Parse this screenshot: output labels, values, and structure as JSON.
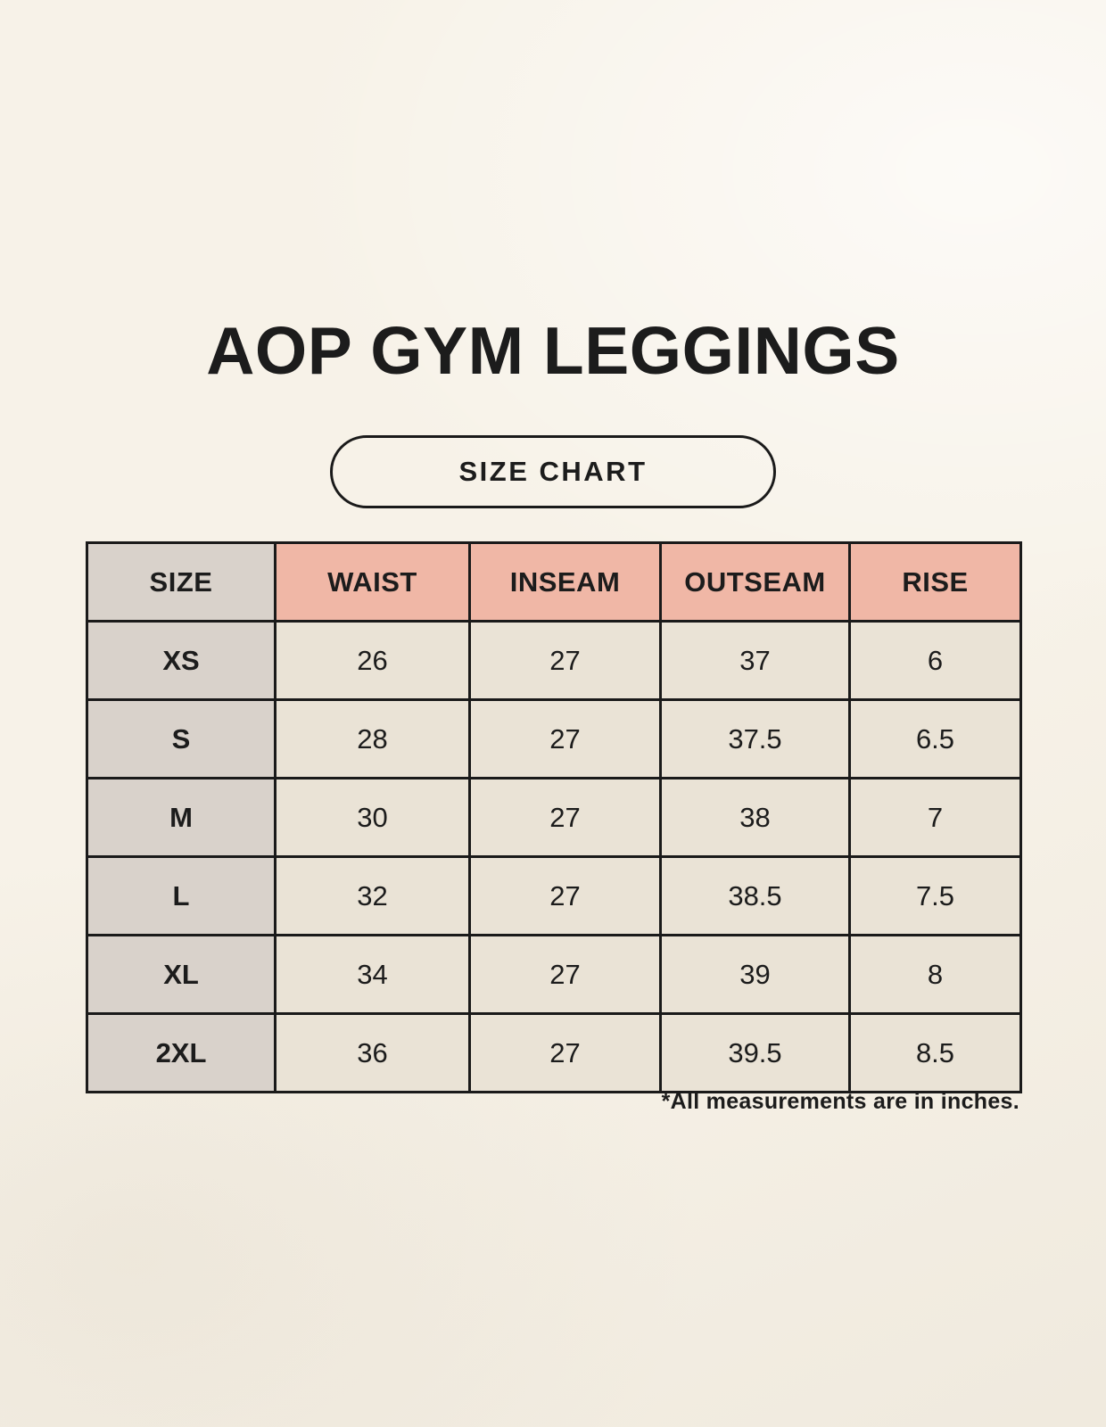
{
  "page": {
    "title": "AOP GYM LEGGINGS",
    "badge_label": "SIZE CHART",
    "footnote": "*All measurements are in inches."
  },
  "colors": {
    "background": "#f7f2e8",
    "header_accent": "#f0b7a6",
    "size_column": "#d9d2cb",
    "cell": "#eae3d6",
    "border": "#1a1a1a",
    "text": "#1c1c1c"
  },
  "table": {
    "columns": [
      "SIZE",
      "WAIST",
      "INSEAM",
      "OUTSEAM",
      "RISE"
    ],
    "rows": [
      {
        "size": "XS",
        "values": [
          "26",
          "27",
          "37",
          "6"
        ]
      },
      {
        "size": "S",
        "values": [
          "28",
          "27",
          "37.5",
          "6.5"
        ]
      },
      {
        "size": "M",
        "values": [
          "30",
          "27",
          "38",
          "7"
        ]
      },
      {
        "size": "L",
        "values": [
          "32",
          "27",
          "38.5",
          "7.5"
        ]
      },
      {
        "size": "XL",
        "values": [
          "34",
          "27",
          "39",
          "8"
        ]
      },
      {
        "size": "2XL",
        "values": [
          "36",
          "27",
          "39.5",
          "8.5"
        ]
      }
    ]
  }
}
